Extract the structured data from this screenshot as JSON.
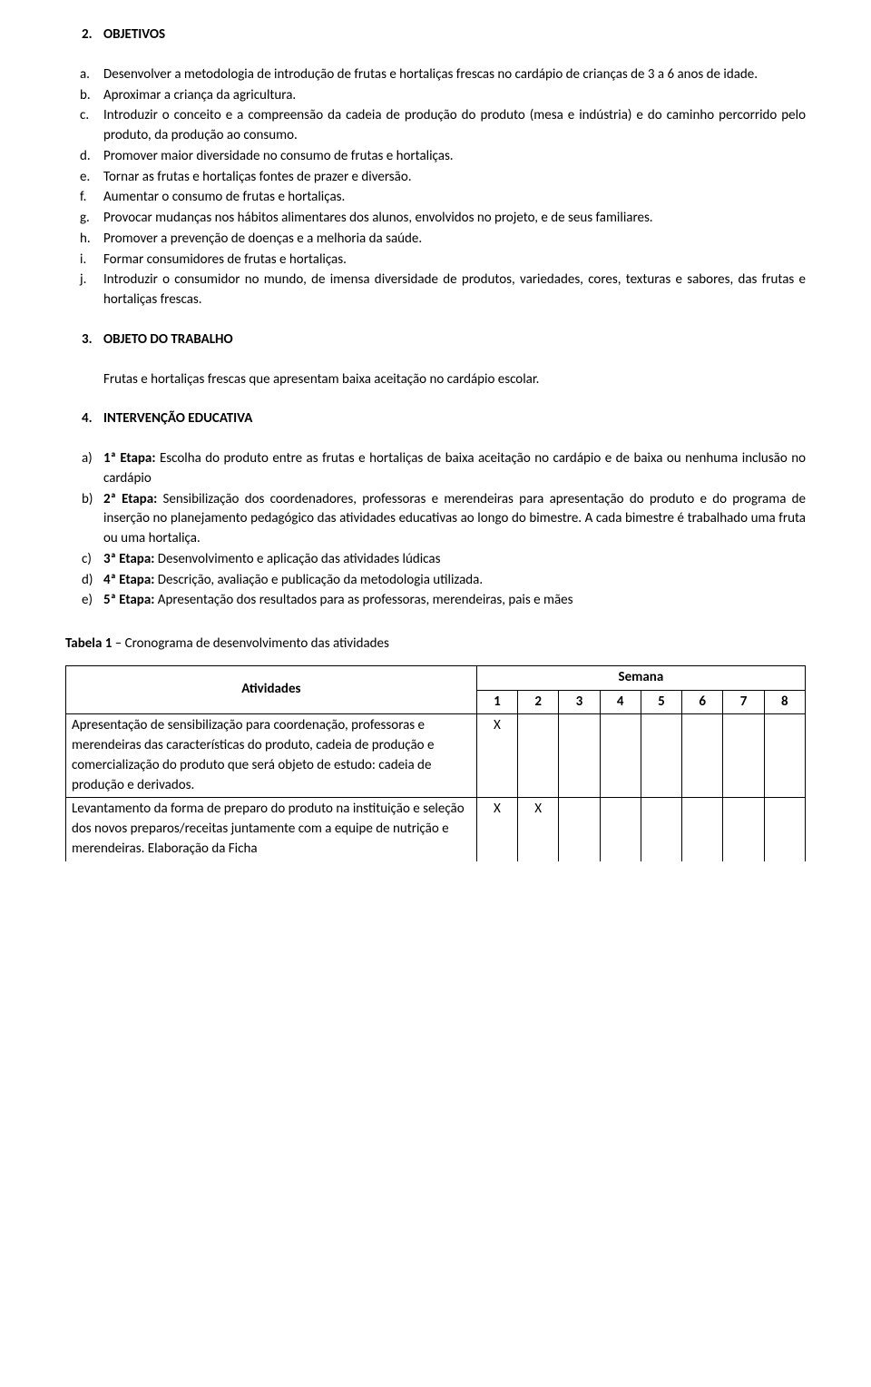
{
  "section2": {
    "heading_num": "2.",
    "heading_text": "OBJETIVOS",
    "items": [
      {
        "marker": "a.",
        "text": "Desenvolver a metodologia de introdução de frutas e hortaliças frescas no cardápio de crianças de 3 a 6 anos de idade."
      },
      {
        "marker": "b.",
        "text": "Aproximar a criança da agricultura."
      },
      {
        "marker": "c.",
        "text": "Introduzir o conceito e a compreensão da cadeia de produção do produto (mesa e indústria) e do caminho percorrido pelo produto, da produção ao consumo."
      },
      {
        "marker": "d.",
        "text": "Promover maior diversidade no consumo de frutas e hortaliças."
      },
      {
        "marker": "e.",
        "text": "Tornar as frutas e hortaliças fontes de prazer e diversão."
      },
      {
        "marker": "f.",
        "text": "Aumentar o consumo de frutas e hortaliças."
      },
      {
        "marker": "g.",
        "text": "Provocar mudanças nos hábitos alimentares dos alunos, envolvidos no projeto, e de seus familiares."
      },
      {
        "marker": "h.",
        "text": "Promover a prevenção de doenças e a melhoria da saúde."
      },
      {
        "marker": "i.",
        "text": "Formar consumidores de frutas e hortaliças."
      },
      {
        "marker": "j.",
        "text": "Introduzir o consumidor no mundo, de imensa diversidade de produtos, variedades, cores, texturas e sabores, das frutas e hortaliças frescas."
      }
    ]
  },
  "section3": {
    "heading_num": "3.",
    "heading_text": "OBJETO DO TRABALHO",
    "paragraph": "Frutas e hortaliças frescas que apresentam baixa aceitação no cardápio escolar."
  },
  "section4": {
    "heading_num": "4.",
    "heading_text": "INTERVENÇÃO EDUCATIVA",
    "items": [
      {
        "marker": "a)",
        "label": "1ª Etapa:",
        "text": " Escolha do produto entre as frutas e hortaliças de baixa aceitação no cardápio e de baixa ou nenhuma inclusão  no cardápio"
      },
      {
        "marker": "b)",
        "label": "2ª Etapa:",
        "text": " Sensibilização dos coordenadores, professoras e merendeiras para apresentação do produto e do programa de inserção no planejamento pedagógico das atividades educativas ao longo do bimestre. A cada bimestre é trabalhado uma fruta ou uma hortaliça."
      },
      {
        "marker": "c)",
        "label": "3ª Etapa:",
        "text": " Desenvolvimento e aplicação das atividades lúdicas"
      },
      {
        "marker": "d)",
        "label": "4ª Etapa:",
        "text": " Descrição, avaliação e publicação da metodologia utilizada."
      },
      {
        "marker": "e)",
        "label": "5ª Etapa:",
        "text": " Apresentação dos resultados para as professoras, merendeiras, pais e mães"
      }
    ]
  },
  "table": {
    "caption_bold": "Tabela 1",
    "caption_rest": " – Cronograma de desenvolvimento das atividades",
    "col_atividades": "Atividades",
    "col_semana": "Semana",
    "week_headers": [
      "1",
      "2",
      "3",
      "4",
      "5",
      "6",
      "7",
      "8"
    ],
    "rows": [
      {
        "activity": "Apresentação de sensibilização para coordenação, professoras e merendeiras das características do produto, cadeia de produção e comercialização do produto que será objeto de estudo: cadeia de produção e derivados.",
        "weeks": [
          "X",
          "",
          "",
          "",
          "",
          "",
          "",
          ""
        ]
      },
      {
        "activity": "Levantamento da forma de preparo do produto na instituição e seleção dos novos preparos/receitas juntamente com a equipe de nutrição e merendeiras. Elaboração da Ficha",
        "weeks": [
          "X",
          "X",
          "",
          "",
          "",
          "",
          "",
          ""
        ]
      }
    ]
  }
}
